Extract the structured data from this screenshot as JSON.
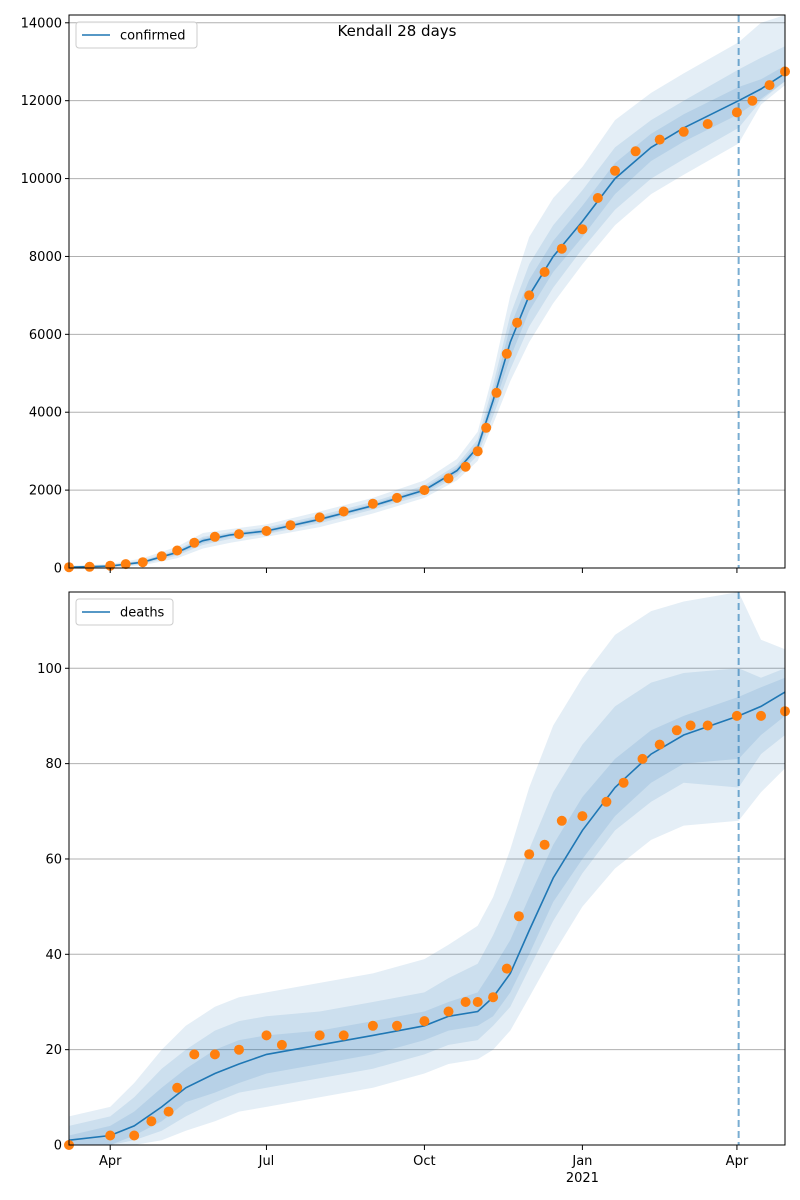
{
  "figure": {
    "title": "Kendall 28 days"
  },
  "colors": {
    "model_line": "#1f77b4",
    "band": "#1f77b4",
    "observed_points": "#ff7f0e",
    "forecast_marker": "#1f77b4",
    "grid": "#b0b0b0"
  },
  "x_axis": {
    "ticks": [
      {
        "date": "2020-04-01",
        "label": "Apr",
        "sublabel": ""
      },
      {
        "date": "2020-07-01",
        "label": "Jul",
        "sublabel": ""
      },
      {
        "date": "2020-10-01",
        "label": "Oct",
        "sublabel": ""
      },
      {
        "date": "2021-01-01",
        "label": "Jan",
        "sublabel": "2021"
      },
      {
        "date": "2021-04-01",
        "label": "Apr",
        "sublabel": ""
      }
    ],
    "range": [
      "2020-03-08",
      "2021-04-29"
    ]
  },
  "chart_data": [
    {
      "type": "line",
      "legend": "confirmed",
      "legend_position": "top-left",
      "grid": "y",
      "xlim": [
        "2020-03-08",
        "2021-04-29"
      ],
      "ylim": [
        0,
        14200
      ],
      "yticks": [
        0,
        2000,
        4000,
        6000,
        8000,
        10000,
        12000,
        14000
      ],
      "forecast_start": "2021-04-02",
      "model": {
        "dates": [
          "2020-03-08",
          "2020-04-01",
          "2020-04-20",
          "2020-05-10",
          "2020-05-25",
          "2020-06-10",
          "2020-07-01",
          "2020-08-01",
          "2020-09-01",
          "2020-10-01",
          "2020-10-20",
          "2020-11-01",
          "2020-11-10",
          "2020-11-20",
          "2020-12-01",
          "2020-12-15",
          "2021-01-01",
          "2021-01-20",
          "2021-02-10",
          "2021-03-01",
          "2021-04-02",
          "2021-04-15",
          "2021-04-29"
        ],
        "values": [
          20,
          50,
          150,
          400,
          700,
          850,
          950,
          1250,
          1600,
          2000,
          2500,
          3100,
          4300,
          5800,
          7000,
          8000,
          8900,
          10000,
          10800,
          11300,
          12000,
          12300,
          12700
        ]
      },
      "bands": [
        {
          "upper": [
            60,
            100,
            250,
            550,
            900,
            1000,
            1120,
            1450,
            1800,
            2250,
            2800,
            3500,
            5000,
            7000,
            8500,
            9500,
            10300,
            11500,
            12200,
            12700,
            13500,
            14000,
            14200
          ],
          "lower": [
            0,
            10,
            70,
            250,
            500,
            650,
            800,
            1050,
            1400,
            1800,
            2250,
            2750,
            3700,
            4800,
            5800,
            6800,
            7800,
            8800,
            9600,
            10100,
            10900,
            11900,
            12400
          ]
        },
        {
          "upper": [
            40,
            75,
            200,
            470,
            800,
            920,
            1040,
            1350,
            1700,
            2120,
            2650,
            3300,
            4700,
            6500,
            7800,
            8800,
            9700,
            10800,
            11500,
            12000,
            12800,
            13100,
            13400
          ],
          "lower": [
            5,
            25,
            100,
            320,
            590,
            750,
            870,
            1150,
            1500,
            1880,
            2350,
            2900,
            3900,
            5100,
            6200,
            7200,
            8200,
            9200,
            10000,
            10500,
            11300,
            12000,
            12500
          ]
        },
        {
          "upper": [
            30,
            60,
            180,
            440,
            760,
            890,
            1000,
            1300,
            1650,
            2060,
            2580,
            3200,
            4500,
            6200,
            7400,
            8400,
            9300,
            10400,
            11150,
            11650,
            12350,
            12550,
            12900
          ],
          "lower": [
            10,
            40,
            120,
            360,
            640,
            810,
            900,
            1200,
            1550,
            1940,
            2420,
            3000,
            4100,
            5400,
            6600,
            7600,
            8500,
            9600,
            10450,
            10950,
            11650,
            12050,
            12500
          ]
        }
      ],
      "observed": {
        "dates": [
          "2020-03-08",
          "2020-03-20",
          "2020-04-01",
          "2020-04-10",
          "2020-04-20",
          "2020-05-01",
          "2020-05-10",
          "2020-05-20",
          "2020-06-01",
          "2020-06-15",
          "2020-07-01",
          "2020-07-15",
          "2020-08-01",
          "2020-08-15",
          "2020-09-01",
          "2020-09-15",
          "2020-10-01",
          "2020-10-15",
          "2020-10-25",
          "2020-11-01",
          "2020-11-06",
          "2020-11-12",
          "2020-11-18",
          "2020-11-24",
          "2020-12-01",
          "2020-12-10",
          "2020-12-20",
          "2021-01-01",
          "2021-01-10",
          "2021-01-20",
          "2021-02-01",
          "2021-02-15",
          "2021-03-01",
          "2021-03-15",
          "2021-04-01",
          "2021-04-10",
          "2021-04-20",
          "2021-04-29"
        ],
        "values": [
          20,
          30,
          60,
          100,
          150,
          300,
          450,
          650,
          800,
          870,
          950,
          1100,
          1300,
          1450,
          1650,
          1800,
          2000,
          2300,
          2600,
          3000,
          3600,
          4500,
          5500,
          6300,
          7000,
          7600,
          8200,
          8700,
          9500,
          10200,
          10700,
          11000,
          11200,
          11400,
          11700,
          12000,
          12400,
          12750
        ]
      }
    },
    {
      "type": "line",
      "legend": "deaths",
      "legend_position": "top-left",
      "grid": "y",
      "xlim": [
        "2020-03-08",
        "2021-04-29"
      ],
      "ylim": [
        0,
        116
      ],
      "yticks": [
        0,
        20,
        40,
        60,
        80,
        100
      ],
      "forecast_start": "2021-04-02",
      "model": {
        "dates": [
          "2020-03-08",
          "2020-04-01",
          "2020-04-15",
          "2020-05-01",
          "2020-05-15",
          "2020-06-01",
          "2020-06-15",
          "2020-07-01",
          "2020-08-01",
          "2020-09-01",
          "2020-10-01",
          "2020-10-15",
          "2020-11-01",
          "2020-11-10",
          "2020-11-20",
          "2020-12-01",
          "2020-12-15",
          "2021-01-01",
          "2021-01-20",
          "2021-02-10",
          "2021-03-01",
          "2021-04-02",
          "2021-04-15",
          "2021-04-29"
        ],
        "values": [
          1,
          2,
          4,
          8,
          12,
          15,
          17,
          19,
          21,
          23,
          25,
          27,
          28,
          31,
          36,
          45,
          56,
          66,
          75,
          82,
          86,
          90,
          92,
          95
        ]
      },
      "bands": [
        {
          "upper": [
            6,
            8,
            13,
            20,
            25,
            29,
            31,
            32,
            34,
            36,
            39,
            42,
            46,
            52,
            62,
            75,
            88,
            98,
            107,
            112,
            114,
            116,
            106,
            104
          ],
          "lower": [
            0,
            0,
            0,
            1,
            3,
            5,
            7,
            8,
            10,
            12,
            15,
            17,
            18,
            20,
            24,
            31,
            40,
            50,
            58,
            64,
            67,
            68,
            74,
            79
          ]
        },
        {
          "upper": [
            4,
            6,
            10,
            16,
            20,
            24,
            26,
            27,
            28,
            30,
            32,
            35,
            38,
            44,
            52,
            62,
            74,
            84,
            92,
            97,
            99,
            100,
            98,
            100
          ],
          "lower": [
            0,
            0,
            1,
            3,
            6,
            9,
            11,
            12,
            14,
            16,
            19,
            21,
            22,
            25,
            29,
            37,
            47,
            57,
            66,
            72,
            76,
            75,
            82,
            86
          ]
        },
        {
          "upper": [
            2,
            4,
            7,
            12,
            16,
            20,
            22,
            23,
            24,
            26,
            28,
            30,
            32,
            37,
            43,
            52,
            63,
            73,
            81,
            87,
            90,
            94,
            96,
            98
          ],
          "lower": [
            0,
            0,
            2,
            5,
            9,
            11,
            13,
            15,
            17,
            19,
            22,
            24,
            25,
            27,
            32,
            40,
            51,
            60,
            69,
            76,
            80,
            81,
            86,
            90
          ]
        }
      ],
      "observed": {
        "dates": [
          "2020-03-08",
          "2020-04-01",
          "2020-04-15",
          "2020-04-25",
          "2020-05-05",
          "2020-05-10",
          "2020-05-20",
          "2020-06-01",
          "2020-06-15",
          "2020-07-01",
          "2020-07-10",
          "2020-08-01",
          "2020-08-15",
          "2020-09-01",
          "2020-09-15",
          "2020-10-01",
          "2020-10-15",
          "2020-10-25",
          "2020-11-01",
          "2020-11-10",
          "2020-11-18",
          "2020-11-25",
          "2020-12-01",
          "2020-12-10",
          "2020-12-20",
          "2021-01-01",
          "2021-01-15",
          "2021-01-25",
          "2021-02-05",
          "2021-02-15",
          "2021-02-25",
          "2021-03-05",
          "2021-03-15",
          "2021-04-01",
          "2021-04-15",
          "2021-04-29"
        ],
        "values": [
          0,
          2,
          2,
          5,
          7,
          12,
          19,
          19,
          20,
          23,
          21,
          23,
          23,
          25,
          25,
          26,
          28,
          30,
          30,
          31,
          37,
          48,
          61,
          63,
          68,
          69,
          72,
          76,
          81,
          84,
          87,
          88,
          88,
          90,
          90,
          91
        ]
      }
    }
  ]
}
